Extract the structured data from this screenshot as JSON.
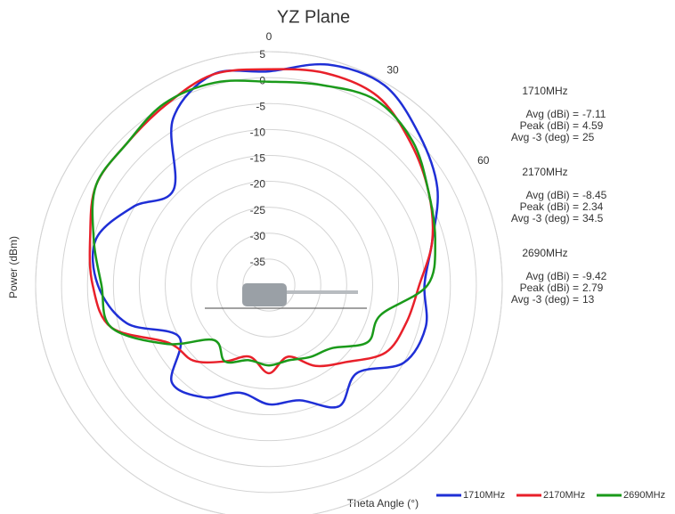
{
  "chart_data": {
    "type": "polar",
    "title": "YZ Plane",
    "radial_axis_label": "Power (dBm)",
    "angle_axis_label": "Theta  Angle (°)",
    "rlim": [
      -40,
      5
    ],
    "rticks": [
      -35,
      -30,
      -25,
      -20,
      -15,
      -10,
      -5,
      0,
      5
    ],
    "thetaticks": [
      0,
      30,
      60
    ],
    "theta": [
      0,
      15,
      30,
      45,
      60,
      75,
      90,
      105,
      120,
      135,
      150,
      165,
      180,
      195,
      210,
      225,
      240,
      255,
      270,
      285,
      300,
      315,
      330,
      345
    ],
    "series": [
      {
        "name": "1710MHz",
        "color": "#1f2fd6",
        "values": [
          1.2,
          4,
          4.5,
          1,
          -2.5,
          -7.4,
          -10,
          -8.7,
          -10,
          -16,
          -13,
          -17,
          -17,
          -18.5,
          -15,
          -13.5,
          -20,
          -11.6,
          -7,
          -5.5,
          -9.8,
          -14,
          -3,
          2
        ]
      },
      {
        "name": "2170MHz",
        "color": "#e8202a",
        "values": [
          1.6,
          2.3,
          2,
          -1.3,
          -4.4,
          -7.4,
          -11,
          -12.5,
          -14,
          -19,
          -22,
          -25.7,
          -23,
          -25.7,
          -23,
          -19.4,
          -17.7,
          -8.5,
          -6,
          -4.3,
          -1.5,
          -1.3,
          0,
          2
        ]
      },
      {
        "name": "2690MHz",
        "color": "#1a9a1a",
        "values": [
          -0.8,
          -0.1,
          1.2,
          -0.8,
          -4.4,
          -6.8,
          -9.4,
          -17.7,
          -18,
          -22.8,
          -24,
          -25,
          -24.5,
          -25,
          -23,
          -25,
          -17.3,
          -8.5,
          -7.7,
          -5,
          -1.5,
          -1.3,
          0.4,
          0.4
        ]
      }
    ],
    "stats": [
      {
        "name": "1710MHz",
        "rows": [
          {
            "label": "Avg (dBi) =",
            "value": -7.11
          },
          {
            "label": "Peak (dBi) =",
            "value": 4.59
          },
          {
            "label": "Avg -3 (deg) =",
            "value": 25
          }
        ]
      },
      {
        "name": "2170MHz",
        "rows": [
          {
            "label": "Avg (dBi) =",
            "value": -8.45
          },
          {
            "label": "Peak (dBi) =",
            "value": 2.34
          },
          {
            "label": "Avg -3 (deg) =",
            "value": 34.5
          }
        ]
      },
      {
        "name": "2690MHz",
        "rows": [
          {
            "label": "Avg (dBi) =",
            "value": -9.42
          },
          {
            "label": "Peak (dBi) =",
            "value": 2.79
          },
          {
            "label": "Avg -3 (deg) =",
            "value": 13
          }
        ]
      }
    ]
  }
}
